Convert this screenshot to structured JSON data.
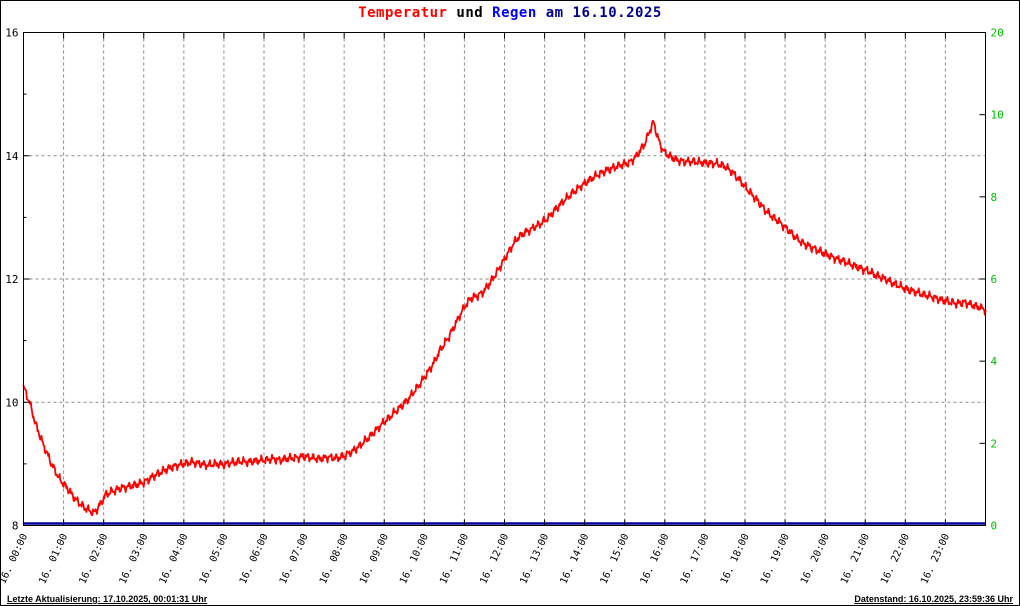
{
  "title": {
    "temperatur": "Temperatur",
    "und": " und ",
    "regen": "Regen",
    "date": " am 16.10.2025"
  },
  "footer": {
    "left": "Letzte Aktualisierung: 17.10.2025, 00:01:31 Uhr",
    "right": "Datenstand: 16.10.2025, 23:59:36 Uhr"
  },
  "colors": {
    "temperature": "#ff0000",
    "rain": "#000099",
    "right_axis": "#00c000",
    "grid": "#8a8a8a",
    "axis": "#000000",
    "background": "#ffffff"
  },
  "chart_data": {
    "type": "line",
    "title": "Temperatur und Regen am 16.10.2025",
    "grid": true,
    "x": {
      "unit": "hour",
      "range": [
        0,
        24
      ],
      "tick_labels": [
        "16. 00:00",
        "16. 01:00",
        "16. 02:00",
        "16. 03:00",
        "16. 04:00",
        "16. 05:00",
        "16. 06:00",
        "16. 07:00",
        "16. 08:00",
        "16. 09:00",
        "16. 10:00",
        "16. 11:00",
        "16. 12:00",
        "16. 13:00",
        "16. 14:00",
        "16. 15:00",
        "16. 16:00",
        "16. 17:00",
        "16. 18:00",
        "16. 19:00",
        "16. 20:00",
        "16. 21:00",
        "16. 22:00",
        "16. 23:00"
      ]
    },
    "y_left": {
      "name": "Temperatur",
      "range": [
        8,
        16
      ],
      "major_ticks": [
        16,
        14,
        12,
        10,
        8
      ],
      "minor_ticks": [
        9,
        11,
        13,
        15
      ],
      "gridline_values": [
        14,
        12,
        10
      ]
    },
    "y_right": {
      "name": "Regen",
      "tick_labels": [
        "20",
        "10",
        "8",
        "6",
        "4",
        "2",
        "0"
      ]
    },
    "series": [
      {
        "name": "Temperatur",
        "color": "#ff0000",
        "points": [
          [
            0,
            10.25
          ],
          [
            0.15,
            10.0
          ],
          [
            0.3,
            9.65
          ],
          [
            0.5,
            9.3
          ],
          [
            0.7,
            9.0
          ],
          [
            0.9,
            8.75
          ],
          [
            1.1,
            8.6
          ],
          [
            1.3,
            8.42
          ],
          [
            1.5,
            8.3
          ],
          [
            1.65,
            8.24
          ],
          [
            1.75,
            8.2
          ],
          [
            1.85,
            8.28
          ],
          [
            1.95,
            8.38
          ],
          [
            2.05,
            8.5
          ],
          [
            2.2,
            8.55
          ],
          [
            2.4,
            8.6
          ],
          [
            2.6,
            8.63
          ],
          [
            2.8,
            8.66
          ],
          [
            3.0,
            8.7
          ],
          [
            3.2,
            8.78
          ],
          [
            3.4,
            8.86
          ],
          [
            3.6,
            8.92
          ],
          [
            3.8,
            8.97
          ],
          [
            4.0,
            9.0
          ],
          [
            4.2,
            9.03
          ],
          [
            4.4,
            9.0
          ],
          [
            4.6,
            8.98
          ],
          [
            4.8,
            9.0
          ],
          [
            5.0,
            8.99
          ],
          [
            5.2,
            9.02
          ],
          [
            5.4,
            9.04
          ],
          [
            5.6,
            9.03
          ],
          [
            5.8,
            9.05
          ],
          [
            6.0,
            9.06
          ],
          [
            6.2,
            9.08
          ],
          [
            6.4,
            9.06
          ],
          [
            6.6,
            9.09
          ],
          [
            6.8,
            9.1
          ],
          [
            7.0,
            9.12
          ],
          [
            7.2,
            9.1
          ],
          [
            7.4,
            9.08
          ],
          [
            7.6,
            9.11
          ],
          [
            7.8,
            9.09
          ],
          [
            8.0,
            9.13
          ],
          [
            8.2,
            9.2
          ],
          [
            8.4,
            9.3
          ],
          [
            8.6,
            9.42
          ],
          [
            8.8,
            9.55
          ],
          [
            9.0,
            9.68
          ],
          [
            9.2,
            9.8
          ],
          [
            9.4,
            9.92
          ],
          [
            9.6,
            10.05
          ],
          [
            9.8,
            10.22
          ],
          [
            10.0,
            10.4
          ],
          [
            10.2,
            10.6
          ],
          [
            10.4,
            10.85
          ],
          [
            10.6,
            11.05
          ],
          [
            10.8,
            11.3
          ],
          [
            11.0,
            11.55
          ],
          [
            11.15,
            11.68
          ],
          [
            11.3,
            11.72
          ],
          [
            11.45,
            11.78
          ],
          [
            11.6,
            11.9
          ],
          [
            11.8,
            12.1
          ],
          [
            12.0,
            12.32
          ],
          [
            12.2,
            12.55
          ],
          [
            12.35,
            12.68
          ],
          [
            12.5,
            12.75
          ],
          [
            12.7,
            12.82
          ],
          [
            12.9,
            12.9
          ],
          [
            13.1,
            13.0
          ],
          [
            13.3,
            13.15
          ],
          [
            13.5,
            13.28
          ],
          [
            13.7,
            13.4
          ],
          [
            13.9,
            13.5
          ],
          [
            14.1,
            13.6
          ],
          [
            14.3,
            13.68
          ],
          [
            14.5,
            13.75
          ],
          [
            14.7,
            13.8
          ],
          [
            14.9,
            13.85
          ],
          [
            15.1,
            13.88
          ],
          [
            15.3,
            14.0
          ],
          [
            15.5,
            14.2
          ],
          [
            15.65,
            14.45
          ],
          [
            15.72,
            14.55
          ],
          [
            15.8,
            14.35
          ],
          [
            15.88,
            14.18
          ],
          [
            16.0,
            14.05
          ],
          [
            16.15,
            13.98
          ],
          [
            16.3,
            13.93
          ],
          [
            16.5,
            13.9
          ],
          [
            16.7,
            13.91
          ],
          [
            16.9,
            13.89
          ],
          [
            17.1,
            13.88
          ],
          [
            17.3,
            13.87
          ],
          [
            17.5,
            13.83
          ],
          [
            17.7,
            13.72
          ],
          [
            17.9,
            13.58
          ],
          [
            18.1,
            13.42
          ],
          [
            18.3,
            13.28
          ],
          [
            18.5,
            13.12
          ],
          [
            18.7,
            13.0
          ],
          [
            18.9,
            12.9
          ],
          [
            19.1,
            12.78
          ],
          [
            19.3,
            12.65
          ],
          [
            19.5,
            12.56
          ],
          [
            19.7,
            12.5
          ],
          [
            19.9,
            12.44
          ],
          [
            20.1,
            12.38
          ],
          [
            20.3,
            12.32
          ],
          [
            20.5,
            12.28
          ],
          [
            20.7,
            12.22
          ],
          [
            20.9,
            12.17
          ],
          [
            21.1,
            12.12
          ],
          [
            21.3,
            12.05
          ],
          [
            21.5,
            12.0
          ],
          [
            21.7,
            11.93
          ],
          [
            21.9,
            11.87
          ],
          [
            22.1,
            11.82
          ],
          [
            22.3,
            11.78
          ],
          [
            22.5,
            11.74
          ],
          [
            22.7,
            11.7
          ],
          [
            22.9,
            11.66
          ],
          [
            23.1,
            11.63
          ],
          [
            23.3,
            11.6
          ],
          [
            23.5,
            11.62
          ],
          [
            23.7,
            11.57
          ],
          [
            23.9,
            11.53
          ],
          [
            24,
            11.5
          ]
        ]
      },
      {
        "name": "Regen",
        "color": "#000099",
        "points": [
          [
            0,
            0
          ],
          [
            24,
            0
          ]
        ]
      }
    ]
  }
}
